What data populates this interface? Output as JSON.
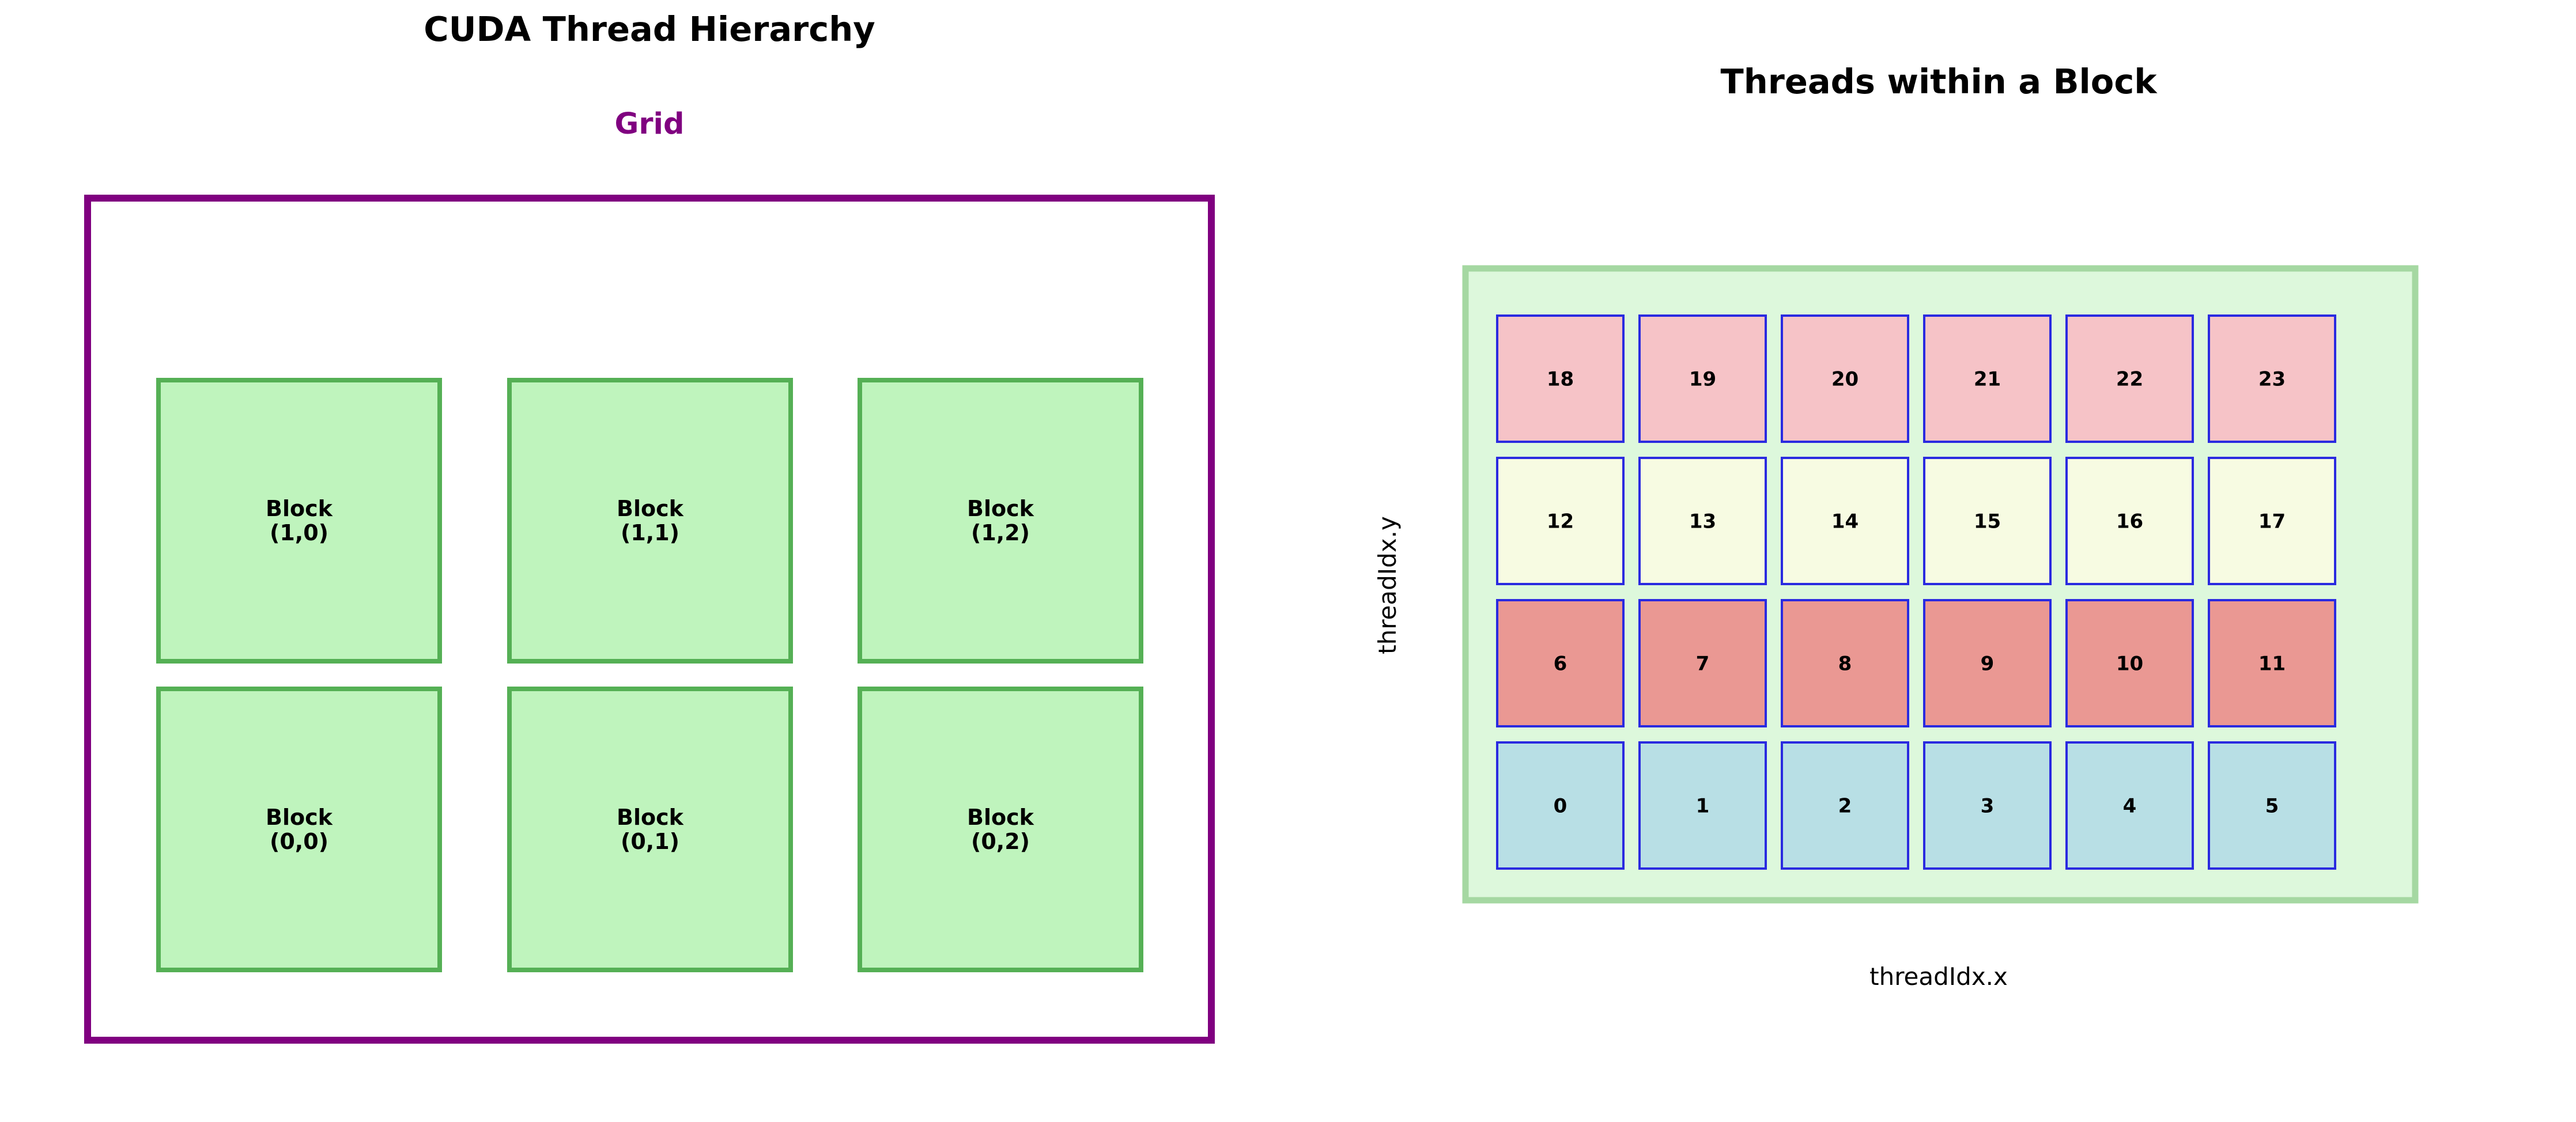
{
  "left_panel": {
    "title": "CUDA Thread Hierarchy",
    "grid_label": "Grid",
    "block_word": "Block",
    "blocks": [
      {
        "row": 1,
        "col": 0,
        "index": "(1,0)"
      },
      {
        "row": 1,
        "col": 1,
        "index": "(1,1)"
      },
      {
        "row": 1,
        "col": 2,
        "index": "(1,2)"
      },
      {
        "row": 0,
        "col": 0,
        "index": "(0,0)"
      },
      {
        "row": 0,
        "col": 1,
        "index": "(0,1)"
      },
      {
        "row": 0,
        "col": 2,
        "index": "(0,2)"
      }
    ]
  },
  "right_panel": {
    "title": "Threads within a Block",
    "x_axis_label": "threadIdx.x",
    "y_axis_label": "threadIdx.y",
    "grid_cols": 6,
    "grid_rows": 4,
    "thread_rows": [
      {
        "y": 3,
        "color": "#f6c3c7",
        "threads": [
          "18",
          "19",
          "20",
          "21",
          "22",
          "23"
        ]
      },
      {
        "y": 2,
        "color": "#f7fbe2",
        "threads": [
          "12",
          "13",
          "14",
          "15",
          "16",
          "17"
        ]
      },
      {
        "y": 1,
        "color": "#ea9893",
        "threads": [
          "6",
          "7",
          "8",
          "9",
          "10",
          "11"
        ]
      },
      {
        "y": 0,
        "color": "#b8dfe5",
        "threads": [
          "0",
          "1",
          "2",
          "3",
          "4",
          "5"
        ]
      }
    ]
  },
  "colors": {
    "grid_border": "#800080",
    "grid_label": "#800080",
    "block_fill": "#bff4bd",
    "block_border": "#55b055",
    "thread_block_fill": "#ddf8dc",
    "thread_block_border": "#a5d8a2",
    "thread_border": "#2a2ae0",
    "text": "#000000"
  }
}
